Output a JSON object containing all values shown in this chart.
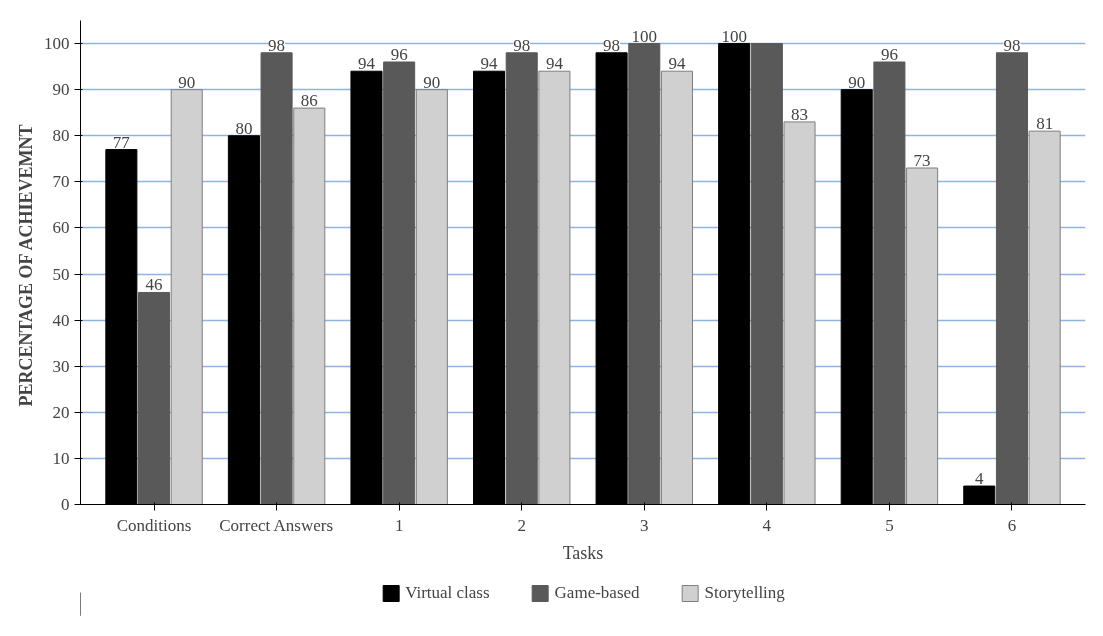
{
  "chart_data": {
    "type": "bar",
    "xlabel": "Tasks",
    "ylabel": "PERCENTAGE OF  ACHIEVEMNT",
    "categories": [
      "Conditions",
      "Correct Answers",
      "1",
      "2",
      "3",
      "4",
      "5",
      "6"
    ],
    "series": [
      {
        "name": "Virtual class",
        "color": "#000000",
        "values": [
          77,
          80,
          94,
          94,
          98,
          100,
          90,
          4
        ],
        "value_labels": [
          "77",
          "80",
          "94",
          "94",
          "98",
          "100",
          "90",
          "4"
        ]
      },
      {
        "name": "Game-based",
        "color": "#595959",
        "values": [
          46,
          98,
          96,
          98,
          100,
          100,
          96,
          98
        ],
        "value_labels": [
          "46",
          "98",
          "96",
          "98",
          "100",
          null,
          "96",
          "98"
        ]
      },
      {
        "name": "Storytelling",
        "color": "#d0d0d0",
        "values": [
          90,
          86,
          90,
          94,
          94,
          83,
          73,
          81
        ],
        "value_labels": [
          "90",
          "86",
          "90",
          "94",
          "94",
          "83",
          "73",
          "81"
        ]
      }
    ],
    "ylim": [
      0,
      105
    ],
    "yticks": [
      0,
      10,
      20,
      30,
      40,
      50,
      60,
      70,
      80,
      90,
      100
    ],
    "grid": "y",
    "legend": "bottom"
  }
}
